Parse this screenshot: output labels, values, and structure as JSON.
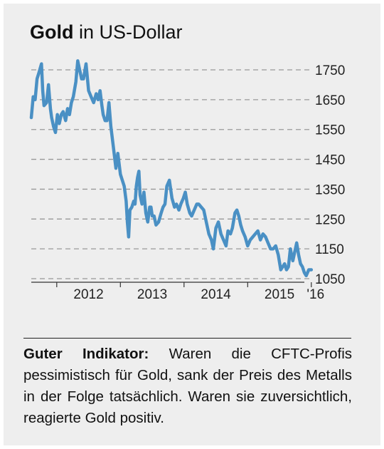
{
  "title": {
    "bold": "Gold",
    "rest": "in US-Dollar"
  },
  "caption": {
    "bold": "Guter Indikator:",
    "text": "Waren die CFTC-Profis pessimistisch für Gold, sank der Preis des Metalls in der Folge tatsächlich. Waren sie zuversichtlich, reagierte Gold positiv."
  },
  "colors": {
    "line": "#4a90c4",
    "background": "#eeeeee",
    "grid": "#999999"
  },
  "chart_data": {
    "type": "line",
    "title": "Gold in US-Dollar",
    "xlabel": "",
    "ylabel": "",
    "ylim": [
      1030,
      1790
    ],
    "y_ticks": [
      1750,
      1650,
      1550,
      1450,
      1350,
      1250,
      1150,
      1050
    ],
    "x_ticks": [
      "2012",
      "2013",
      "2014",
      "2015",
      "'16"
    ],
    "grid": "horizontal dashed",
    "series": [
      {
        "x": [
          2011.6,
          2011.63,
          2011.66,
          2011.69,
          2011.72,
          2011.76,
          2011.78,
          2011.8,
          2011.84,
          2011.87,
          2011.9,
          2011.92,
          2011.95,
          2011.98,
          2012.01,
          2012.04,
          2012.07,
          2012.1,
          2012.14,
          2012.17,
          2012.2,
          2012.23,
          2012.26,
          2012.3,
          2012.33,
          2012.36,
          2012.39,
          2012.42,
          2012.46,
          2012.5,
          2012.54,
          2012.58,
          2012.62,
          2012.65,
          2012.68,
          2012.71,
          2012.73,
          2012.76,
          2012.79,
          2012.82,
          2012.85,
          2012.89,
          2012.93,
          2012.96,
          2013.0,
          2013.03,
          2013.06,
          2013.09,
          2013.11,
          2013.13,
          2013.15,
          2013.18,
          2013.21,
          2013.23,
          2013.25,
          2013.27,
          2013.29,
          2013.31,
          2013.34,
          2013.37,
          2013.4,
          2013.43,
          2013.46,
          2013.48,
          2013.5,
          2013.53,
          2013.56,
          2013.6,
          2013.64,
          2013.67,
          2013.7,
          2013.73,
          2013.77,
          2013.81,
          2013.85,
          2013.88,
          2013.92,
          2013.95,
          2013.99,
          2014.02,
          2014.05,
          2014.09,
          2014.12,
          2014.16,
          2014.2,
          2014.23,
          2014.27,
          2014.31,
          2014.35,
          2014.39,
          2014.43,
          2014.46,
          2014.5,
          2014.54,
          2014.58,
          2014.62,
          2014.66,
          2014.69,
          2014.73,
          2014.76,
          2014.8,
          2014.83,
          2014.86,
          2014.89,
          2014.92,
          2014.96,
          2015.0,
          2015.04,
          2015.08,
          2015.12,
          2015.16,
          2015.2,
          2015.24,
          2015.28,
          2015.32,
          2015.36,
          2015.4,
          2015.44,
          2015.48,
          2015.52,
          2015.55,
          2015.58,
          2015.61,
          2015.64,
          2015.67,
          2015.71,
          2015.74,
          2015.77,
          2015.8,
          2015.83,
          2015.86,
          2015.89,
          2015.92,
          2015.96,
          2016.0
        ],
        "values": [
          1590,
          1660,
          1650,
          1720,
          1740,
          1770,
          1680,
          1630,
          1640,
          1700,
          1620,
          1590,
          1560,
          1540,
          1600,
          1570,
          1600,
          1610,
          1580,
          1620,
          1600,
          1640,
          1660,
          1710,
          1780,
          1750,
          1720,
          1720,
          1770,
          1680,
          1660,
          1640,
          1670,
          1650,
          1680,
          1630,
          1600,
          1580,
          1580,
          1640,
          1560,
          1490,
          1420,
          1470,
          1400,
          1380,
          1360,
          1310,
          1240,
          1190,
          1280,
          1290,
          1310,
          1300,
          1360,
          1390,
          1410,
          1330,
          1300,
          1340,
          1270,
          1240,
          1290,
          1290,
          1260,
          1260,
          1230,
          1240,
          1270,
          1290,
          1300,
          1360,
          1380,
          1320,
          1290,
          1300,
          1280,
          1300,
          1320,
          1340,
          1300,
          1270,
          1260,
          1280,
          1300,
          1300,
          1290,
          1280,
          1240,
          1200,
          1180,
          1150,
          1220,
          1240,
          1200,
          1180,
          1160,
          1210,
          1200,
          1220,
          1270,
          1280,
          1260,
          1230,
          1210,
          1190,
          1160,
          1180,
          1190,
          1200,
          1210,
          1180,
          1200,
          1190,
          1170,
          1150,
          1150,
          1160,
          1130,
          1080,
          1090,
          1100,
          1080,
          1090,
          1150,
          1110,
          1140,
          1170,
          1130,
          1100,
          1090,
          1070,
          1060,
          1080,
          1080
        ]
      }
    ]
  }
}
